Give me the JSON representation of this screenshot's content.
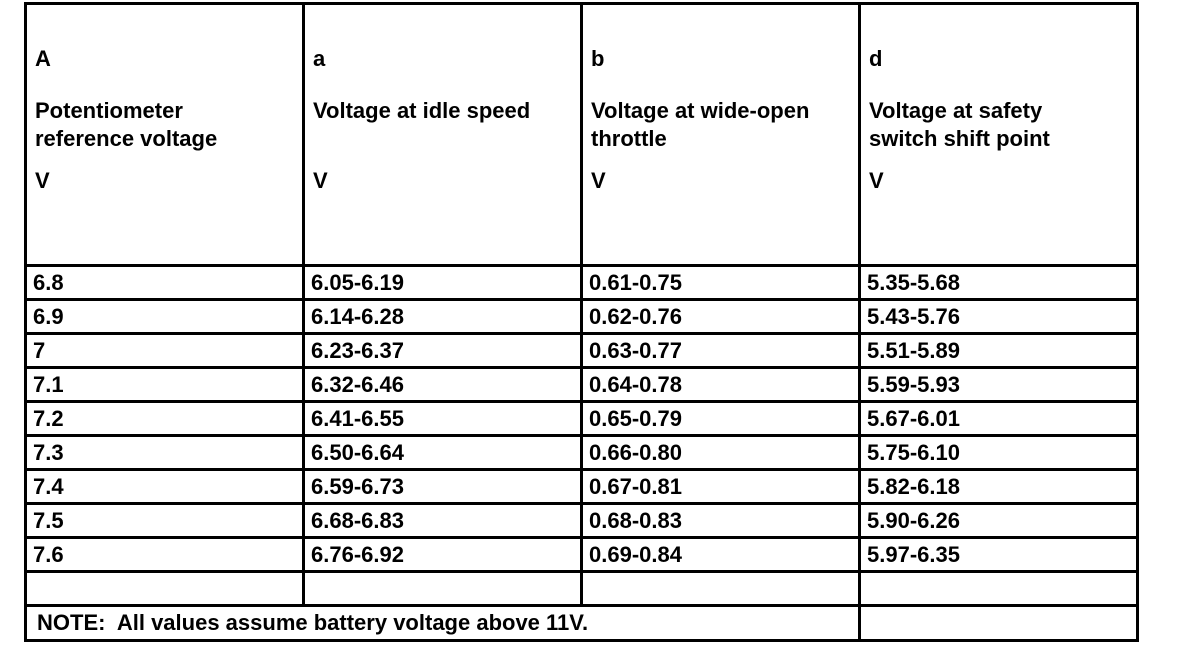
{
  "table": {
    "headers": [
      {
        "letter": "A",
        "label": "Potentiometer reference voltage",
        "unit": "V"
      },
      {
        "letter": "a",
        "label": "Voltage at idle speed",
        "unit": "V"
      },
      {
        "letter": "b",
        "label": "Voltage at wide-open throttle",
        "unit": "V"
      },
      {
        "letter": "d",
        "label": "Voltage at safety switch shift point",
        "unit": "V"
      }
    ],
    "rows": [
      [
        "6.8",
        "6.05-6.19",
        "0.61-0.75",
        "5.35-5.68"
      ],
      [
        "6.9",
        "6.14-6.28",
        "0.62-0.76",
        "5.43-5.76"
      ],
      [
        "7",
        "6.23-6.37",
        "0.63-0.77",
        "5.51-5.89"
      ],
      [
        "7.1",
        "6.32-6.46",
        "0.64-0.78",
        "5.59-5.93"
      ],
      [
        "7.2",
        "6.41-6.55",
        "0.65-0.79",
        "5.67-6.01"
      ],
      [
        "7.3",
        "6.50-6.64",
        "0.66-0.80",
        "5.75-6.10"
      ],
      [
        "7.4",
        "6.59-6.73",
        "0.67-0.81",
        "5.82-6.18"
      ],
      [
        "7.5",
        "6.68-6.83",
        "0.68-0.83",
        "5.90-6.26"
      ],
      [
        "7.6",
        "6.76-6.92",
        "0.69-0.84",
        "5.97-6.35"
      ]
    ],
    "note": "NOTE:  All values assume battery voltage above 11V."
  }
}
